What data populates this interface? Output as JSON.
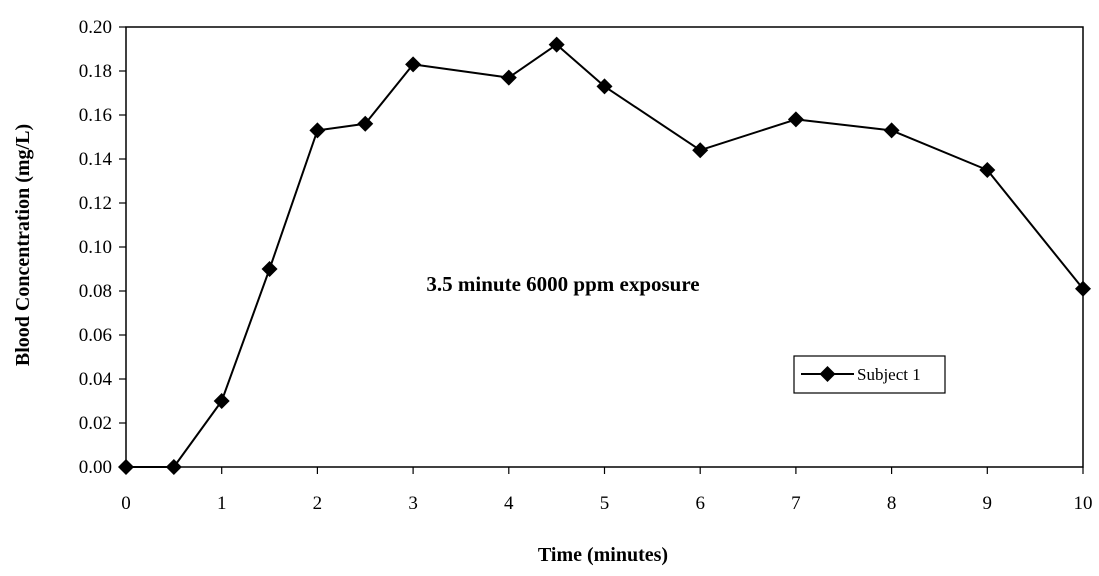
{
  "chart_data": {
    "type": "line",
    "title": "",
    "annotation": "3.5 minute 6000 ppm exposure",
    "xlabel": "Time (minutes)",
    "ylabel": "Blood Concentration (mg/L)",
    "xlim": [
      0,
      10
    ],
    "ylim": [
      0,
      0.2
    ],
    "xticks": [
      "0",
      "1",
      "2",
      "3",
      "4",
      "5",
      "6",
      "7",
      "8",
      "9",
      "10"
    ],
    "yticks": [
      "0.00",
      "0.02",
      "0.04",
      "0.06",
      "0.08",
      "0.10",
      "0.12",
      "0.14",
      "0.16",
      "0.18",
      "0.20"
    ],
    "grid": false,
    "legend": {
      "position": "right",
      "entries": [
        "Subject 1"
      ]
    },
    "series": [
      {
        "name": "Subject 1",
        "marker": "diamond",
        "color": "#000000",
        "x": [
          0,
          0.5,
          1,
          1.5,
          2,
          2.5,
          3,
          4,
          4.5,
          5,
          6,
          7,
          8,
          9,
          10
        ],
        "y": [
          0.0,
          0.0,
          0.03,
          0.09,
          0.153,
          0.156,
          0.183,
          0.177,
          0.192,
          0.173,
          0.144,
          0.158,
          0.153,
          0.135,
          0.081
        ]
      }
    ]
  }
}
